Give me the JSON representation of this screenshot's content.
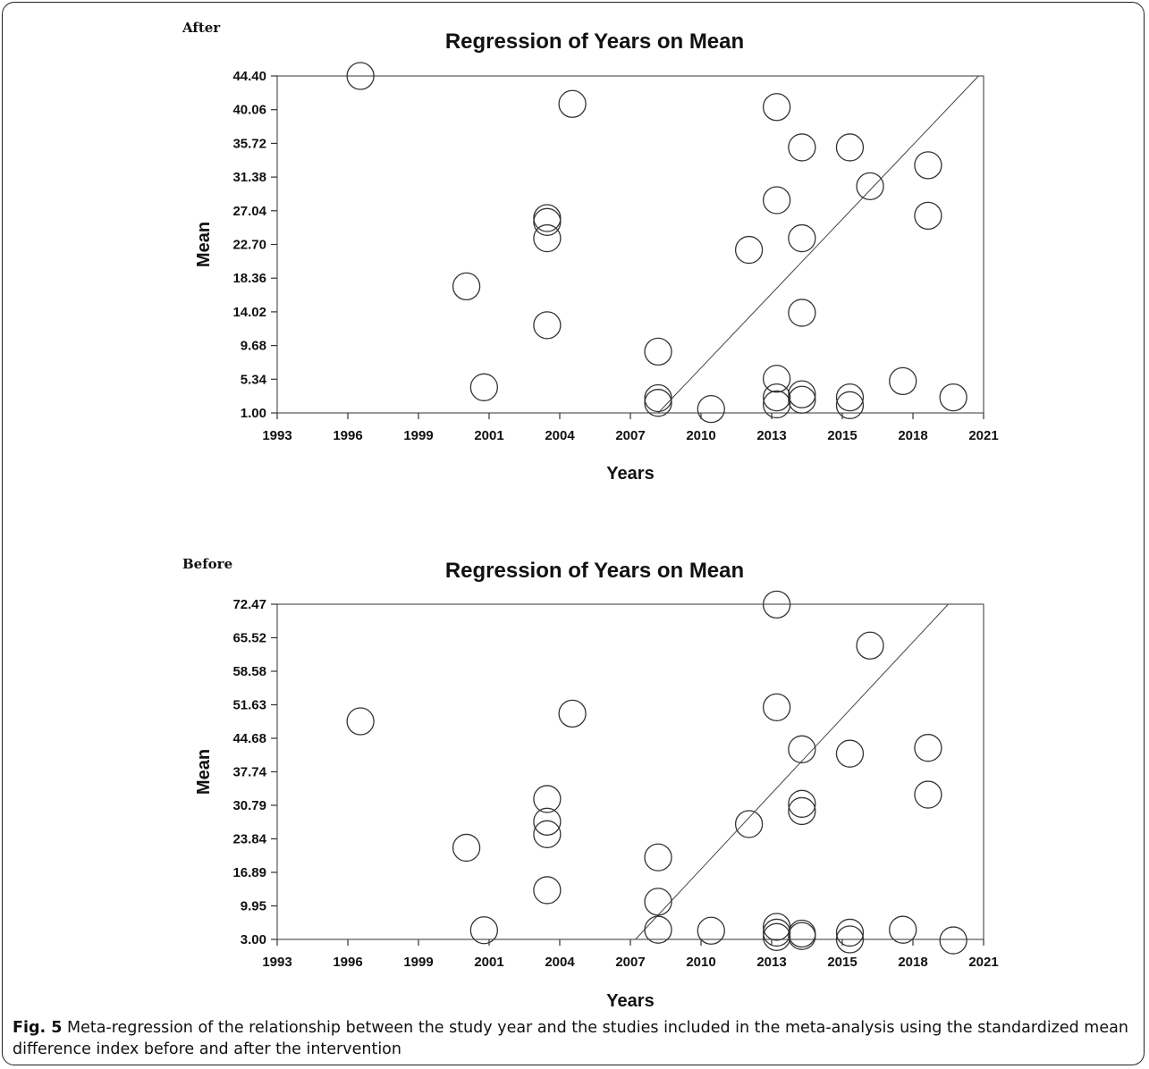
{
  "chart_data": [
    {
      "type": "scatter",
      "panel_label": "After",
      "title": "Regression of Years on Mean",
      "xlabel": "Years",
      "ylabel": "Mean",
      "xlim": [
        1993,
        2021
      ],
      "ylim": [
        1.0,
        44.4
      ],
      "xticks": [
        "1993",
        "1996",
        "1999",
        "2001",
        "2004",
        "2007",
        "2010",
        "2013",
        "2015",
        "2018",
        "2021"
      ],
      "yticks": [
        "1.00",
        "5.34",
        "9.68",
        "14.02",
        "18.36",
        "22.70",
        "27.04",
        "31.38",
        "35.72",
        "40.06",
        "44.40"
      ],
      "grid": false,
      "points": [
        {
          "x": 1996.3,
          "y": 44.4
        },
        {
          "x": 2000.5,
          "y": 17.3
        },
        {
          "x": 2001.2,
          "y": 4.3
        },
        {
          "x": 2003.7,
          "y": 26.1
        },
        {
          "x": 2003.7,
          "y": 25.6
        },
        {
          "x": 2003.7,
          "y": 23.5
        },
        {
          "x": 2003.7,
          "y": 12.3
        },
        {
          "x": 2004.7,
          "y": 40.8
        },
        {
          "x": 2008.1,
          "y": 8.9
        },
        {
          "x": 2008.1,
          "y": 2.9
        },
        {
          "x": 2008.1,
          "y": 2.3
        },
        {
          "x": 2010.2,
          "y": 1.5
        },
        {
          "x": 2011.7,
          "y": 22.0
        },
        {
          "x": 2012.8,
          "y": 40.4
        },
        {
          "x": 2012.8,
          "y": 28.4
        },
        {
          "x": 2012.8,
          "y": 5.4
        },
        {
          "x": 2012.8,
          "y": 3.0
        },
        {
          "x": 2012.8,
          "y": 2.1
        },
        {
          "x": 2013.8,
          "y": 35.2
        },
        {
          "x": 2013.8,
          "y": 23.5
        },
        {
          "x": 2013.8,
          "y": 13.9
        },
        {
          "x": 2013.8,
          "y": 3.4
        },
        {
          "x": 2013.8,
          "y": 2.7
        },
        {
          "x": 2015.7,
          "y": 35.2
        },
        {
          "x": 2015.7,
          "y": 3.0
        },
        {
          "x": 2015.7,
          "y": 2.0
        },
        {
          "x": 2016.5,
          "y": 30.2
        },
        {
          "x": 2017.8,
          "y": 5.1
        },
        {
          "x": 2018.8,
          "y": 32.9
        },
        {
          "x": 2018.8,
          "y": 26.4
        },
        {
          "x": 2019.8,
          "y": 3.0
        }
      ],
      "regression_line": {
        "x": [
          2008.1,
          2020.8
        ],
        "y": [
          1.0,
          44.4
        ]
      }
    },
    {
      "type": "scatter",
      "panel_label": "Before",
      "title": "Regression of Years on Mean",
      "xlabel": "Years",
      "ylabel": "Mean",
      "xlim": [
        1993,
        2021
      ],
      "ylim": [
        3.0,
        72.47
      ],
      "xticks": [
        "1993",
        "1996",
        "1999",
        "2001",
        "2004",
        "2007",
        "2010",
        "2013",
        "2015",
        "2018",
        "2021"
      ],
      "yticks": [
        "3.00",
        "9.95",
        "16.89",
        "23.84",
        "30.79",
        "37.74",
        "44.68",
        "51.63",
        "58.58",
        "65.52",
        "72.47"
      ],
      "grid": false,
      "points": [
        {
          "x": 1996.3,
          "y": 48.2
        },
        {
          "x": 2000.5,
          "y": 22.0
        },
        {
          "x": 2001.2,
          "y": 4.9
        },
        {
          "x": 2003.7,
          "y": 32.1
        },
        {
          "x": 2003.7,
          "y": 27.4
        },
        {
          "x": 2003.7,
          "y": 24.8
        },
        {
          "x": 2003.7,
          "y": 13.2
        },
        {
          "x": 2004.7,
          "y": 49.8
        },
        {
          "x": 2008.1,
          "y": 20.0
        },
        {
          "x": 2008.1,
          "y": 10.8
        },
        {
          "x": 2008.1,
          "y": 5.0
        },
        {
          "x": 2010.2,
          "y": 4.8
        },
        {
          "x": 2011.7,
          "y": 26.9
        },
        {
          "x": 2012.8,
          "y": 72.4
        },
        {
          "x": 2012.8,
          "y": 51.1
        },
        {
          "x": 2012.8,
          "y": 5.6
        },
        {
          "x": 2012.8,
          "y": 4.4
        },
        {
          "x": 2012.8,
          "y": 3.5
        },
        {
          "x": 2013.8,
          "y": 42.4
        },
        {
          "x": 2013.8,
          "y": 31.1
        },
        {
          "x": 2013.8,
          "y": 29.6
        },
        {
          "x": 2013.8,
          "y": 4.2
        },
        {
          "x": 2013.8,
          "y": 3.7
        },
        {
          "x": 2015.7,
          "y": 41.5
        },
        {
          "x": 2015.7,
          "y": 4.4
        },
        {
          "x": 2015.7,
          "y": 3.0
        },
        {
          "x": 2016.5,
          "y": 63.9
        },
        {
          "x": 2017.8,
          "y": 5.0
        },
        {
          "x": 2018.8,
          "y": 42.7
        },
        {
          "x": 2018.8,
          "y": 33.0
        },
        {
          "x": 2019.8,
          "y": 2.8
        }
      ],
      "regression_line": {
        "x": [
          2007.2,
          2019.6
        ],
        "y": [
          3.0,
          72.47
        ]
      }
    }
  ],
  "caption": {
    "label": "Fig. 5",
    "text": " Meta-regression of the relationship between the study year and the studies included in the meta-analysis using the standardized mean difference index before and after the intervention"
  }
}
